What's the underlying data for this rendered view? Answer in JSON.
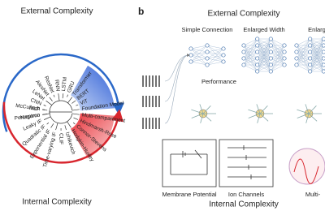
{
  "panel_a": {
    "top_title": "External Complexity",
    "bottom_title": "Internal Complexity",
    "external_models": [
      "Perceptron",
      "MLP",
      "CNN",
      "LeNet",
      "AlexNet",
      "ResNet",
      "RNN",
      "LSTM",
      "GRU",
      "Transformer",
      "BERT",
      "ViT",
      "Foundation Model"
    ],
    "internal_models": [
      "Multi-compartment",
      "Hindmarsh-Rose",
      "Connor-Stevens",
      "Hodgkin-Huxley",
      "Izhikevich",
      "CLIF",
      "Time-varying IF",
      "Exponential IF",
      "Quadratic IF",
      "Leaky IF",
      "Nagumo",
      "McCulloch"
    ]
  },
  "panel_b": {
    "label": "b",
    "top_title": "External Complexity",
    "bottom_title": "Internal Complexity",
    "columns": [
      "Simple Connection",
      "Enlarged Width",
      "Enlarg"
    ],
    "performance": "Performance",
    "bottom_labels": [
      "Membrane Potential",
      "Ion Channels",
      "Multi-"
    ]
  }
}
